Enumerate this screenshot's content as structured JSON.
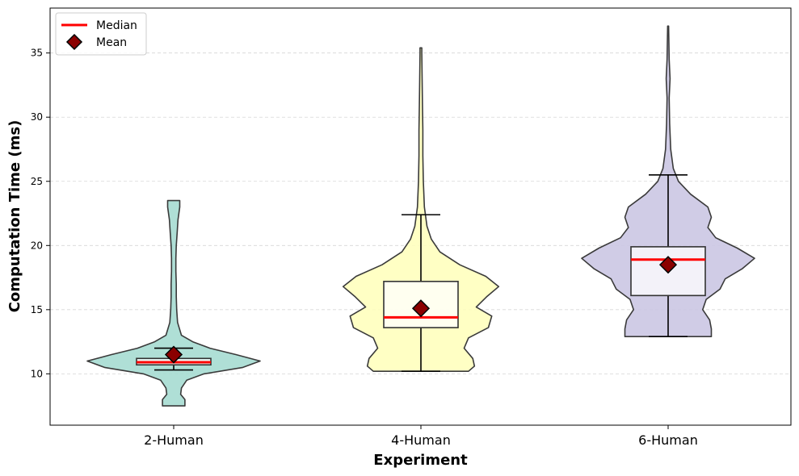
{
  "chart_data": {
    "type": "violin",
    "title": "",
    "xlabel": "Experiment",
    "ylabel": "Computation Time (ms)",
    "ylim": [
      6,
      38.5
    ],
    "yticks": [
      10,
      15,
      20,
      25,
      30,
      35
    ],
    "grid": "y-dashed",
    "legend_position": "top-left",
    "legend": {
      "median_label": "Median",
      "mean_label": "Mean"
    },
    "categories": [
      "2-Human",
      "4-Human",
      "6-Human"
    ],
    "colors": {
      "median": "#ff0000",
      "mean": "#8b0000",
      "violins": [
        "#a6dcd2",
        "#ffffbe",
        "#cbc6e3"
      ]
    },
    "groups": [
      {
        "name": "2-Human",
        "min": 10.3,
        "max": 12.0,
        "q1": 10.7,
        "median": 10.9,
        "q3": 11.2,
        "mean": 11.5,
        "violin_range": [
          7.5,
          23.5
        ],
        "violin_profile": [
          [
            7.5,
            0.13
          ],
          [
            8.0,
            0.13
          ],
          [
            8.4,
            0.08
          ],
          [
            8.9,
            0.09
          ],
          [
            9.5,
            0.15
          ],
          [
            10.0,
            0.35
          ],
          [
            10.5,
            0.8
          ],
          [
            11.0,
            1.0
          ],
          [
            11.5,
            0.72
          ],
          [
            12.0,
            0.42
          ],
          [
            12.5,
            0.22
          ],
          [
            13.0,
            0.09
          ],
          [
            14.0,
            0.045
          ],
          [
            15.0,
            0.035
          ],
          [
            16.0,
            0.03
          ],
          [
            17.0,
            0.03
          ],
          [
            18.0,
            0.025
          ],
          [
            19.0,
            0.025
          ],
          [
            20.0,
            0.03
          ],
          [
            21.0,
            0.04
          ],
          [
            22.0,
            0.05
          ],
          [
            23.0,
            0.07
          ],
          [
            23.5,
            0.07
          ]
        ]
      },
      {
        "name": "4-Human",
        "min": 10.2,
        "max": 22.4,
        "q1": 13.6,
        "median": 14.4,
        "q3": 17.2,
        "mean": 15.1,
        "violin_range": [
          10.2,
          35.4
        ],
        "violin_profile": [
          [
            10.2,
            0.55
          ],
          [
            10.6,
            0.62
          ],
          [
            11.2,
            0.6
          ],
          [
            12.0,
            0.5
          ],
          [
            12.8,
            0.55
          ],
          [
            13.6,
            0.78
          ],
          [
            14.5,
            0.82
          ],
          [
            15.2,
            0.64
          ],
          [
            16.0,
            0.76
          ],
          [
            16.8,
            0.9
          ],
          [
            17.6,
            0.75
          ],
          [
            18.5,
            0.45
          ],
          [
            19.5,
            0.22
          ],
          [
            20.5,
            0.12
          ],
          [
            21.5,
            0.07
          ],
          [
            23.0,
            0.04
          ],
          [
            25.0,
            0.028
          ],
          [
            27.0,
            0.022
          ],
          [
            29.0,
            0.022
          ],
          [
            31.0,
            0.018
          ],
          [
            33.0,
            0.014
          ],
          [
            35.0,
            0.01
          ],
          [
            35.4,
            0.01
          ]
        ]
      },
      {
        "name": "6-Human",
        "min": 12.9,
        "max": 25.5,
        "q1": 16.1,
        "median": 18.9,
        "q3": 19.9,
        "mean": 18.5,
        "violin_range": [
          12.9,
          37.1
        ],
        "violin_profile": [
          [
            12.9,
            0.5
          ],
          [
            13.5,
            0.5
          ],
          [
            14.2,
            0.48
          ],
          [
            15.0,
            0.4
          ],
          [
            15.8,
            0.44
          ],
          [
            16.6,
            0.6
          ],
          [
            17.4,
            0.66
          ],
          [
            18.2,
            0.86
          ],
          [
            19.0,
            1.0
          ],
          [
            19.8,
            0.8
          ],
          [
            20.6,
            0.55
          ],
          [
            21.4,
            0.46
          ],
          [
            22.2,
            0.5
          ],
          [
            23.0,
            0.46
          ],
          [
            24.0,
            0.26
          ],
          [
            25.0,
            0.12
          ],
          [
            26.0,
            0.06
          ],
          [
            27.5,
            0.03
          ],
          [
            29.5,
            0.018
          ],
          [
            31.5,
            0.012
          ],
          [
            33.0,
            0.022
          ],
          [
            34.5,
            0.012
          ],
          [
            36.0,
            0.008
          ],
          [
            37.1,
            0.006
          ]
        ]
      }
    ]
  }
}
